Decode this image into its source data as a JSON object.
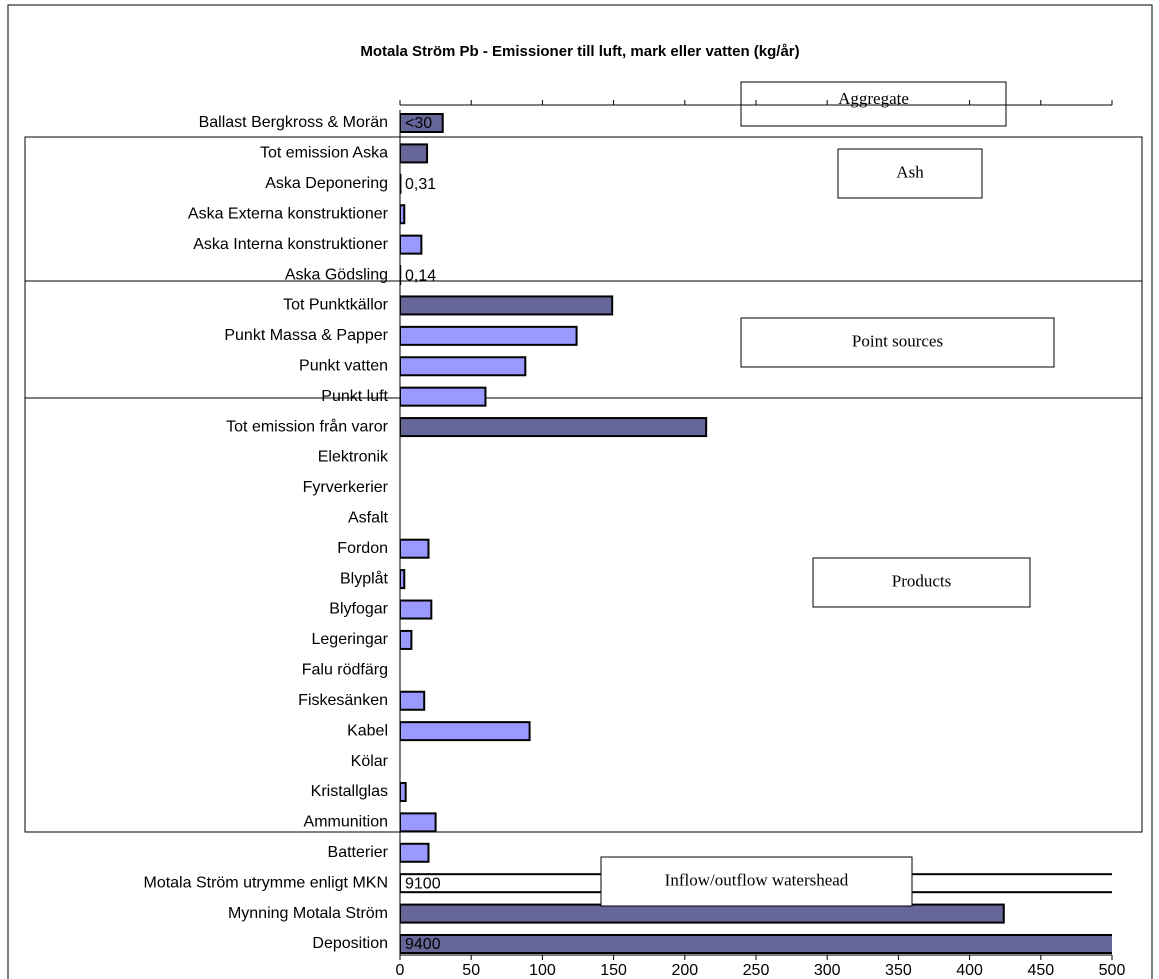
{
  "chart_data": {
    "type": "bar",
    "orientation": "horizontal",
    "title": "Motala Ström Pb - Emissioner till luft, mark eller vatten (kg/år)",
    "categories": [
      "Ballast Bergkross & Morän",
      "Tot emission Aska",
      "Aska Deponering",
      "Aska Externa konstruktioner",
      "Aska Interna konstruktioner",
      "Aska Gödsling",
      "Tot Punktkällor",
      "Punkt Massa & Papper",
      "Punkt vatten",
      "Punkt luft",
      "Tot emission från varor",
      "Elektronik",
      "Fyrverkerier",
      "Asfalt",
      "Fordon",
      "Blyplåt",
      "Blyfogar",
      "Legeringar",
      "Falu rödfärg",
      "Fiskesänken",
      "Kabel",
      "Kölar",
      "Kristallglas",
      "Ammunition",
      "Batterier",
      "Motala Ström utrymme enligt MKN",
      "Mynning Motala Ström",
      "Deposition"
    ],
    "values": [
      30,
      19,
      0.31,
      3,
      15,
      0.14,
      149,
      124,
      88,
      60,
      215,
      null,
      null,
      null,
      20,
      3,
      22,
      8,
      null,
      17,
      91,
      null,
      4,
      25,
      20,
      9100,
      424,
      9400
    ],
    "value_labels": [
      "<30",
      null,
      "0,31",
      null,
      null,
      "0,14",
      null,
      null,
      null,
      null,
      null,
      null,
      null,
      null,
      null,
      null,
      null,
      null,
      null,
      null,
      null,
      null,
      null,
      null,
      null,
      "9100",
      null,
      "9400"
    ],
    "colors": [
      "#666699",
      "#666699",
      "#9999ff",
      "#9999ff",
      "#9999ff",
      "#9999ff",
      "#666699",
      "#9999ff",
      "#9999ff",
      "#9999ff",
      "#666699",
      "#9999ff",
      "#9999ff",
      "#9999ff",
      "#9999ff",
      "#9999ff",
      "#9999ff",
      "#9999ff",
      "#9999ff",
      "#9999ff",
      "#9999ff",
      "#9999ff",
      "#9999ff",
      "#9999ff",
      "#9999ff",
      "#ffffff",
      "#666699",
      "#666699"
    ],
    "xlim": [
      0,
      500
    ],
    "xticks": [
      0,
      50,
      100,
      150,
      200,
      250,
      300,
      350,
      400,
      450,
      500
    ],
    "annotations": [
      "Aggregate",
      "Ash",
      "Point sources",
      "Products",
      "Inflow/outflow watershead"
    ]
  }
}
